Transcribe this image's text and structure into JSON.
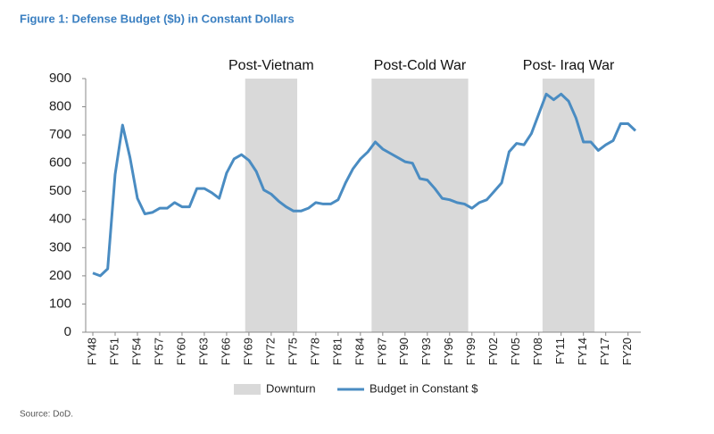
{
  "chart_data": {
    "type": "line",
    "title": "Figure 1: Defense Budget ($b) in Constant Dollars",
    "source": "Source: DoD.",
    "x": [
      1948,
      1949,
      1950,
      1951,
      1952,
      1953,
      1954,
      1955,
      1956,
      1957,
      1958,
      1959,
      1960,
      1961,
      1962,
      1963,
      1964,
      1965,
      1966,
      1967,
      1968,
      1969,
      1970,
      1971,
      1972,
      1973,
      1974,
      1975,
      1976,
      1977,
      1978,
      1979,
      1980,
      1981,
      1982,
      1983,
      1984,
      1985,
      1986,
      1987,
      1988,
      1989,
      1990,
      1991,
      1992,
      1993,
      1994,
      1995,
      1996,
      1997,
      1998,
      1999,
      2000,
      2001,
      2002,
      2003,
      2004,
      2005,
      2006,
      2007,
      2008,
      2009,
      2010,
      2011,
      2012,
      2013,
      2014,
      2015,
      2016,
      2017,
      2018,
      2019,
      2020,
      2021
    ],
    "series": [
      {
        "name": "Budget in Constant $",
        "color": "#4a8cc2",
        "values": [
          210,
          200,
          225,
          560,
          735,
          620,
          475,
          420,
          425,
          440,
          440,
          460,
          445,
          445,
          510,
          510,
          495,
          475,
          565,
          615,
          630,
          610,
          570,
          505,
          490,
          465,
          445,
          430,
          430,
          440,
          460,
          455,
          455,
          470,
          530,
          580,
          615,
          640,
          675,
          650,
          635,
          620,
          605,
          600,
          545,
          540,
          510,
          475,
          470,
          460,
          455,
          440,
          460,
          470,
          500,
          530,
          640,
          670,
          665,
          705,
          775,
          845,
          825,
          845,
          820,
          760,
          675,
          675,
          645,
          665,
          680,
          740,
          740,
          715
        ]
      }
    ],
    "regions": {
      "name": "Downturn",
      "color": "#d9d9d9",
      "items": [
        {
          "label": "Post-Vietnam",
          "from": 1968.5,
          "to": 1975.5
        },
        {
          "label": "Post-Cold War",
          "from": 1985.5,
          "to": 1998.5
        },
        {
          "label": "Post- Iraq War",
          "from": 2008.5,
          "to": 2015.5
        }
      ]
    },
    "xlim": [
      1948,
      2021
    ],
    "xticks": [
      {
        "value": 1948,
        "label": "FY48"
      },
      {
        "value": 1951,
        "label": "FY51"
      },
      {
        "value": 1954,
        "label": "FY54"
      },
      {
        "value": 1957,
        "label": "FY57"
      },
      {
        "value": 1960,
        "label": "FY60"
      },
      {
        "value": 1963,
        "label": "FY63"
      },
      {
        "value": 1966,
        "label": "FY66"
      },
      {
        "value": 1969,
        "label": "FY69"
      },
      {
        "value": 1972,
        "label": "FY72"
      },
      {
        "value": 1975,
        "label": "FY75"
      },
      {
        "value": 1978,
        "label": "FY78"
      },
      {
        "value": 1981,
        "label": "FY81"
      },
      {
        "value": 1984,
        "label": "FY84"
      },
      {
        "value": 1987,
        "label": "FY87"
      },
      {
        "value": 1990,
        "label": "FY90"
      },
      {
        "value": 1993,
        "label": "FY93"
      },
      {
        "value": 1996,
        "label": "FY96"
      },
      {
        "value": 1999,
        "label": "FY99"
      },
      {
        "value": 2002,
        "label": "FY02"
      },
      {
        "value": 2005,
        "label": "FY05"
      },
      {
        "value": 2008,
        "label": "FY08"
      },
      {
        "value": 2011,
        "label": "FY11"
      },
      {
        "value": 2014,
        "label": "FY14"
      },
      {
        "value": 2017,
        "label": "FY17"
      },
      {
        "value": 2020,
        "label": "FY20"
      }
    ],
    "ylim": [
      0,
      900
    ],
    "yticks": [
      0,
      100,
      200,
      300,
      400,
      500,
      600,
      700,
      800,
      900
    ]
  }
}
